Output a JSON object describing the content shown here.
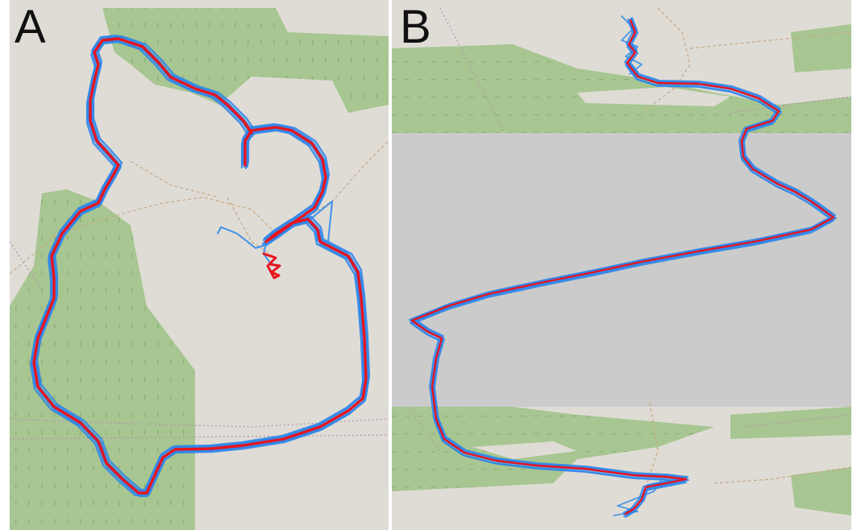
{
  "panels": [
    {
      "label": "A"
    },
    {
      "label": "B"
    }
  ],
  "colors": {
    "map_background": "#dfdcd6",
    "forest": "#a7c691",
    "forest_dots": "#8fb27a",
    "footpath": "#c9a982",
    "boundary": "#b892b3",
    "occluded_band": "#cbcbcb",
    "track_blue": "#2f86ea",
    "track_red": "#e8141e"
  }
}
